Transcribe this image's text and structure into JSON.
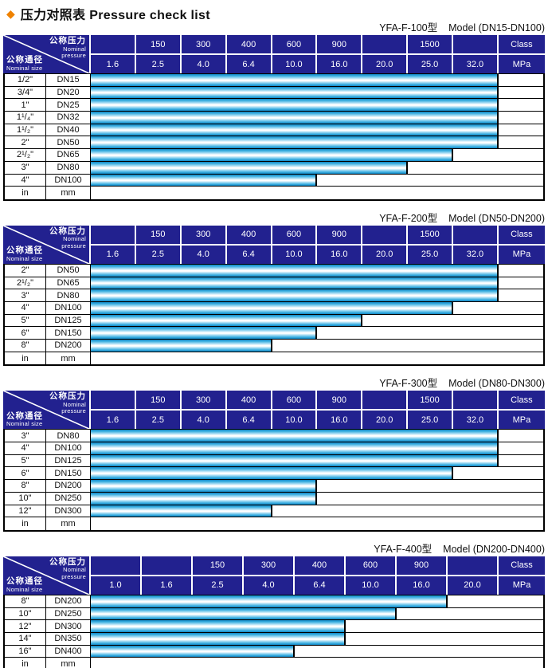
{
  "colors": {
    "header_navy": "#22218f",
    "bar_blue": "#38ade0",
    "diamond_orange": "#ef8200",
    "border_black": "#000000"
  },
  "title": {
    "icon": "◆",
    "zh": "压力对照表",
    "en": "Pressure check list"
  },
  "header_corner": {
    "pressure_zh": "公称压力",
    "pressure_en1": "Nominal",
    "pressure_en2": "pressure",
    "size_zh": "公称通径",
    "size_en": "Nominal size"
  },
  "class_label": "Class",
  "mpa_label": "MPa",
  "tables": [
    {
      "caption_model": "YFA-F-100型",
      "caption_range": "Model (DN15-DN100)",
      "class_row": [
        "",
        "150",
        "300",
        "400",
        "600",
        "900",
        "",
        "1500",
        ""
      ],
      "mpa_row": [
        "1.6",
        "2.5",
        "4.0",
        "6.4",
        "10.0",
        "16.0",
        "20.0",
        "25.0",
        "32.0"
      ],
      "rows": [
        {
          "inch": "1/2\"",
          "mm": "DN15",
          "bar_cols": 9,
          "max_mpa": "32.0"
        },
        {
          "inch": "3/4\"",
          "mm": "DN20",
          "bar_cols": 9,
          "max_mpa": "32.0"
        },
        {
          "inch": "1\"",
          "mm": "DN25",
          "bar_cols": 9,
          "max_mpa": "32.0"
        },
        {
          "inch": "1¹/₄\"",
          "mm": "DN32",
          "bar_cols": 9,
          "max_mpa": "32.0"
        },
        {
          "inch": "1¹/₂\"",
          "mm": "DN40",
          "bar_cols": 9,
          "max_mpa": "32.0"
        },
        {
          "inch": "2\"",
          "mm": "DN50",
          "bar_cols": 9,
          "max_mpa": "32.0"
        },
        {
          "inch": "2¹/₂\"",
          "mm": "DN65",
          "bar_cols": 8,
          "max_mpa": "25.0"
        },
        {
          "inch": "3\"",
          "mm": "DN80",
          "bar_cols": 7,
          "max_mpa": "20.0"
        },
        {
          "inch": "4\"",
          "mm": "DN100",
          "bar_cols": 5,
          "max_mpa": "10.0"
        },
        {
          "inch": "in",
          "mm": "mm",
          "bar_cols": 0,
          "max_mpa": null
        }
      ]
    },
    {
      "caption_model": "YFA-F-200型",
      "caption_range": "Model (DN50-DN200)",
      "class_row": [
        "",
        "150",
        "300",
        "400",
        "600",
        "900",
        "",
        "1500",
        ""
      ],
      "mpa_row": [
        "1.6",
        "2.5",
        "4.0",
        "6.4",
        "10.0",
        "16.0",
        "20.0",
        "25.0",
        "32.0"
      ],
      "rows": [
        {
          "inch": "2\"",
          "mm": "DN50",
          "bar_cols": 9,
          "max_mpa": "32.0"
        },
        {
          "inch": "2¹/₂\"",
          "mm": "DN65",
          "bar_cols": 9,
          "max_mpa": "32.0"
        },
        {
          "inch": "3\"",
          "mm": "DN80",
          "bar_cols": 9,
          "max_mpa": "32.0"
        },
        {
          "inch": "4\"",
          "mm": "DN100",
          "bar_cols": 8,
          "max_mpa": "25.0"
        },
        {
          "inch": "5\"",
          "mm": "DN125",
          "bar_cols": 6,
          "max_mpa": "16.0"
        },
        {
          "inch": "6\"",
          "mm": "DN150",
          "bar_cols": 5,
          "max_mpa": "10.0"
        },
        {
          "inch": "8\"",
          "mm": "DN200",
          "bar_cols": 4,
          "max_mpa": "6.4"
        },
        {
          "inch": "in",
          "mm": "mm",
          "bar_cols": 0,
          "max_mpa": null
        }
      ]
    },
    {
      "caption_model": "YFA-F-300型",
      "caption_range": "Model (DN80-DN300)",
      "class_row": [
        "",
        "150",
        "300",
        "400",
        "600",
        "900",
        "",
        "1500",
        ""
      ],
      "mpa_row": [
        "1.6",
        "2.5",
        "4.0",
        "6.4",
        "10.0",
        "16.0",
        "20.0",
        "25.0",
        "32.0"
      ],
      "rows": [
        {
          "inch": "3\"",
          "mm": "DN80",
          "bar_cols": 9,
          "max_mpa": "32.0"
        },
        {
          "inch": "4\"",
          "mm": "DN100",
          "bar_cols": 9,
          "max_mpa": "32.0"
        },
        {
          "inch": "5\"",
          "mm": "DN125",
          "bar_cols": 9,
          "max_mpa": "32.0"
        },
        {
          "inch": "6\"",
          "mm": "DN150",
          "bar_cols": 8,
          "max_mpa": "25.0"
        },
        {
          "inch": "8\"",
          "mm": "DN200",
          "bar_cols": 5,
          "max_mpa": "10.0"
        },
        {
          "inch": "10\"",
          "mm": "DN250",
          "bar_cols": 5,
          "max_mpa": "10.0"
        },
        {
          "inch": "12\"",
          "mm": "DN300",
          "bar_cols": 4,
          "max_mpa": "6.4"
        },
        {
          "inch": "in",
          "mm": "mm",
          "bar_cols": 0,
          "max_mpa": null
        }
      ]
    },
    {
      "caption_model": "YFA-F-400型",
      "caption_range": "Model (DN200-DN400)",
      "class_row": [
        "",
        "",
        "150",
        "300",
        "400",
        "600",
        "900",
        ""
      ],
      "mpa_row": [
        "1.0",
        "1.6",
        "2.5",
        "4.0",
        "6.4",
        "10.0",
        "16.0",
        "20.0"
      ],
      "rows": [
        {
          "inch": "8\"",
          "mm": "DN200",
          "bar_cols": 7,
          "max_mpa": "16.0"
        },
        {
          "inch": "10\"",
          "mm": "DN250",
          "bar_cols": 6,
          "max_mpa": "10.0"
        },
        {
          "inch": "12\"",
          "mm": "DN300",
          "bar_cols": 5,
          "max_mpa": "6.4"
        },
        {
          "inch": "14\"",
          "mm": "DN350",
          "bar_cols": 5,
          "max_mpa": "6.4"
        },
        {
          "inch": "16\"",
          "mm": "DN400",
          "bar_cols": 4,
          "max_mpa": "4.0"
        },
        {
          "inch": "in",
          "mm": "mm",
          "bar_cols": 0,
          "max_mpa": null
        }
      ]
    }
  ]
}
